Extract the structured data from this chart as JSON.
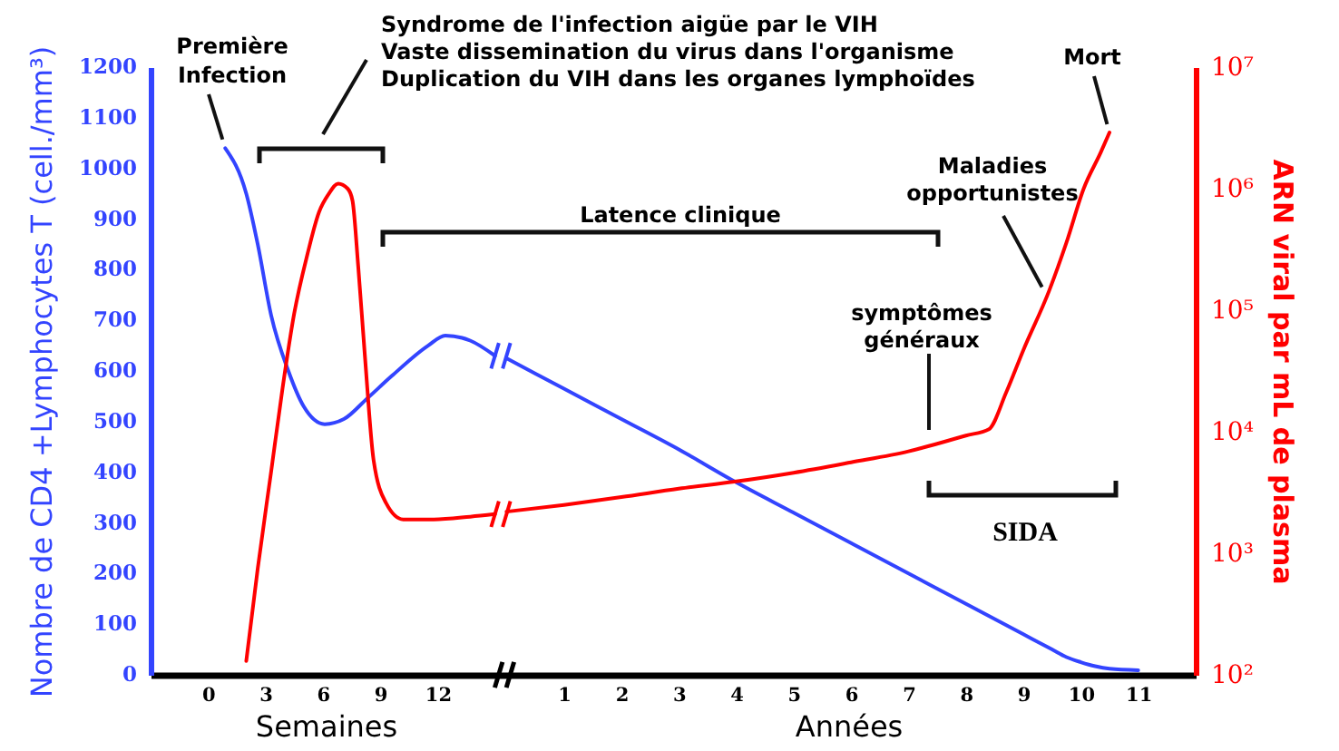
{
  "chart_data": [
    {
      "type": "line",
      "xlabel": "Semaines",
      "ylabel": "Nombre de CD4 +Lymphocytes T (cell./mm³)",
      "xlim": [
        -3,
        15.3
      ],
      "xticks": [
        0,
        3,
        6,
        9,
        12
      ],
      "ylim": [
        0,
        1200
      ],
      "yticks": [
        0,
        100,
        200,
        300,
        400,
        500,
        600,
        700,
        800,
        900,
        1000,
        1100,
        1200
      ],
      "y2lim": [
        100,
        10000000
      ],
      "log": "y2",
      "tick_labels": "xy",
      "series": [
        {
          "color": "#3344ff",
          "x": [
            0.9,
            2,
            2.6,
            3.3,
            4.2,
            5,
            6.1,
            7.1,
            8.3,
            9.6,
            11.5,
            12.4,
            13.7,
            15
          ],
          "values": [
            1040,
            950,
            850,
            710,
            600,
            530,
            495,
            505,
            545,
            590,
            650,
            670,
            660,
            630
          ]
        },
        {
          "color": "#ff0000",
          "axis": "y2",
          "x": [
            2,
            2.6,
            3.3,
            3.9,
            4.5,
            5.2,
            5.8,
            6.3,
            6.8,
            7.3,
            7.55,
            7.85,
            8.2,
            8.65,
            9.3,
            10.2,
            11.8,
            13.7,
            15
          ],
          "values": [
            130,
            750,
            4700,
            23000,
            93000,
            290000,
            640000,
            900000,
            1100000,
            1000000,
            800000,
            230000,
            42000,
            5900,
            2600,
            1900,
            1900,
            2000,
            2100
          ]
        }
      ],
      "annotations": [
        {
          "text": "Première\nInfection",
          "x": 0.9,
          "y": 1040
        },
        "Syndrome de l'infection aigüe par le VIH\nVaste dissemination du virus dans l'organisme\nDuplication du VIH dans les organes lymphoïdes"
      ]
    },
    {
      "type": "line",
      "xlabel": "Années",
      "y2label": "ARN viral par mL de plasma",
      "xlim": [
        -0.1,
        12
      ],
      "xticks": [
        1,
        2,
        3,
        4,
        5,
        6,
        7,
        8,
        9,
        10,
        11
      ],
      "ylim": [
        0,
        1200
      ],
      "y2lim": [
        100,
        10000000
      ],
      "y2ticks": [
        {
          "value": 100,
          "label": "10²"
        },
        {
          "value": 1000,
          "label": "10³"
        },
        {
          "value": 10000,
          "label": "10⁴"
        },
        {
          "value": 100000,
          "label": "10⁵"
        },
        {
          "value": 1000000,
          "label": "10⁶"
        },
        {
          "value": 10000000,
          "label": "10⁷"
        }
      ],
      "log": "y2",
      "tick_labels": "xy2",
      "series": [
        {
          "color": "#3344ff",
          "x": [
            0,
            1,
            2,
            3,
            4,
            5,
            6,
            7,
            8,
            9,
            9.5,
            9.75,
            10,
            10.25,
            10.5,
            11
          ],
          "values": [
            625,
            565,
            505,
            445,
            380,
            320,
            260,
            200,
            140,
            80,
            50,
            35,
            25,
            17,
            12,
            9
          ]
        },
        {
          "color": "#ff0000",
          "axis": "y2",
          "x": [
            0,
            1,
            2,
            3,
            4,
            5,
            6,
            7,
            8,
            8.4,
            8.7,
            9,
            9.45,
            9.75,
            10.05,
            10.35,
            10.5
          ],
          "values": [
            2200,
            2500,
            2900,
            3400,
            3900,
            4600,
            5600,
            6900,
            9300,
            10500,
            21000,
            47000,
            145000,
            360000,
            1000000,
            2000000,
            2900000
          ]
        }
      ],
      "annotations": [
        "Latence clinique",
        "symptômes\ngénéraux",
        {
          "text": "Maladies\nopportunistes",
          "x": 9.4,
          "y": 750
        },
        {
          "text": "Mort",
          "x": 10.5,
          "y": 1070
        },
        "SIDA"
      ]
    }
  ]
}
